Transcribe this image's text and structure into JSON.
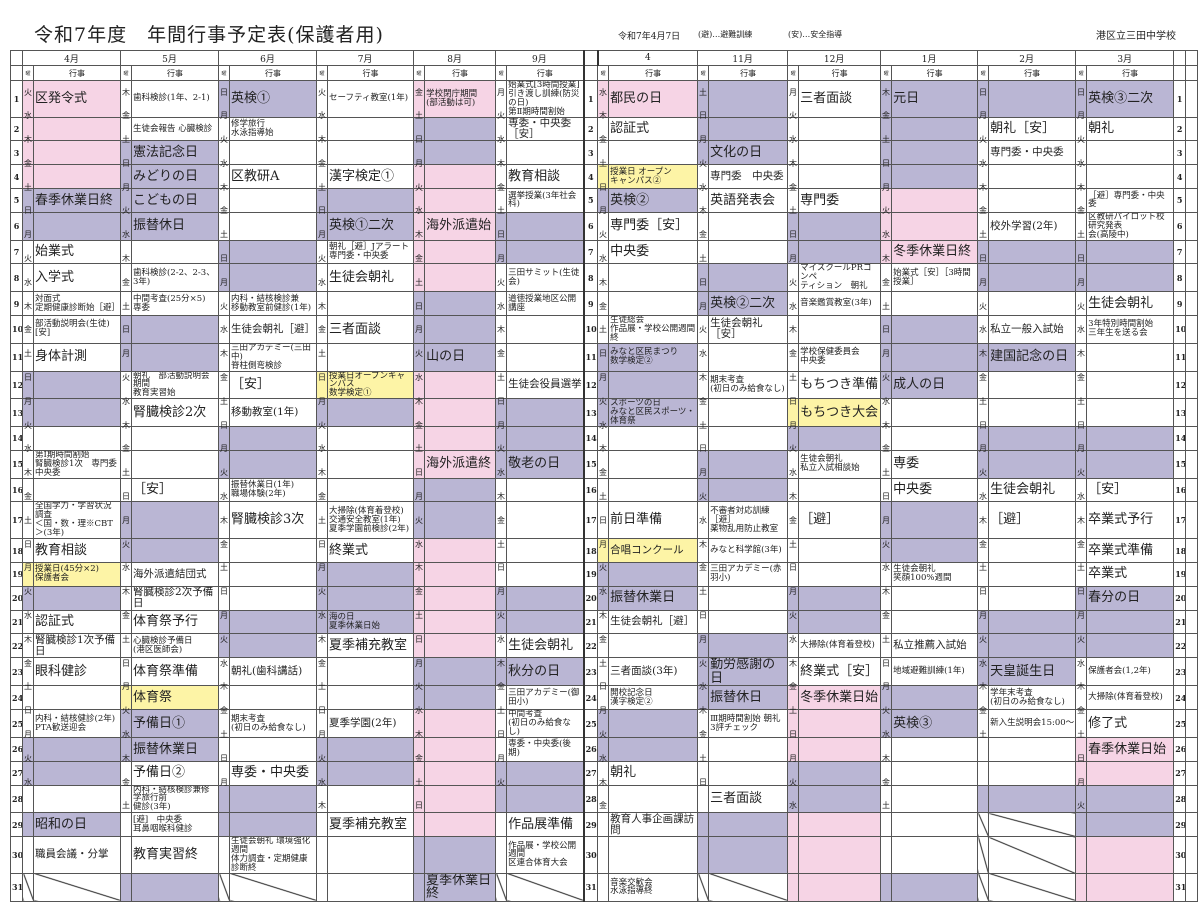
{
  "header": {
    "title": "令和7年度　年間行事予定表(保護者用)",
    "date": "令和7年4月7日",
    "legend_evac": "(避)…避難訓練",
    "legend_safety": "(安)…安全指導",
    "school": "港区立三田中学校",
    "wd_label": "曜",
    "event_label": "行事"
  },
  "colors": {
    "holiday": "#bab6d4",
    "vacation": "#f6d4e5",
    "special_school_day": "#fdf4a6"
  },
  "bg_legend": {
    ".": "normal",
    "w": "holiday",
    "p": "vacation",
    "y": "special_school_day",
    "x": "no-day"
  },
  "months": [
    {
      "name": "4月",
      "wd": "火水木金土日月火水木金土日月火水木金土日月火水木金土日月火水",
      "bg": "ppppww.....ww.....yw.....ww.w.x",
      "events": {
        "1": "区発令式",
        "5": "春季休業日終",
        "7": "始業式",
        "8": "入学式",
        "9": "対面式\n定期健康診断始［避］",
        "10": "部活動説明会(生徒)\n[安]",
        "11": "身体計測",
        "15": "第Ⅰ期時間割始\n腎臓検診1次　専門委中央委",
        "17": "全国学力・学習状況調査\n＜国・数・理※CBT＞(3年)",
        "18": "教育相談",
        "19": "授業日(45分×2)\n保護者会",
        "21": "認証式",
        "22": "腎臓検診1次予備日",
        "23": "眼科健診",
        "25": "内科・結核健診(2年)\nPTA歓送迎会",
        "29": "昭和の日",
        "30": "職員会議・分掌"
      }
    },
    {
      "name": "5月",
      "wd": "木金土日月火水木金土日月火水木金土日月火水木金土日月火水木金土",
      "bg": "..wwww...ww.....ww.....yww....w",
      "events": {
        "1": "歯科検診(1年、2-1)",
        "2": "生徒会報告 心臓検診",
        "3": "憲法記念日",
        "4": "みどりの日",
        "5": "こどもの日",
        "6": "振替休日",
        "8": "歯科検診(2-2、2-3、3年)",
        "9": "中間考査(25分×5)\n専委",
        "12": "朝礼　部活動説明会期間\n教育実習始",
        "13": "腎臓検診2次",
        "16": "［安］",
        "19": "海外派遣結団式",
        "20": "腎臓検診2次予備日",
        "21": "体育祭予行",
        "22": "心臓検診予備日\n(港区医師会)",
        "23": "体育祭準備",
        "24": "体育祭",
        "25": "予備日①",
        "26": "振替休業日",
        "27": "予備日②",
        "28": "内科・結核検診兼修学旅行前\n健診(3年)",
        "29": "[避]　中央委\n耳鼻咽喉科健診",
        "30": "教育実習終"
      }
    },
    {
      "name": "6月",
      "wd": "日月火水木金土日月火水木金土日月火水木金土日月火水木金土日月",
      "bg": "w.....ww.....ww.....ww.....ww.x",
      "events": {
        "1": "英検①",
        "2": "修学旅行\n水泳指導始",
        "4": "区教研A",
        "9": "内科・結核検診兼\n移動教室前健診(1年)",
        "10": "生徒会朝礼［避］",
        "11": "三田アカデミー(三田中)\n脊柱側弯検診",
        "12": "［安］",
        "13": "移動教室(1年)",
        "16": "振替休業日(1年)\n職場体験(2年)",
        "17": "腎臓検診3次",
        "23": "朝礼(歯科講話)",
        "25": "期末考査\n(初日のみ給食なし)",
        "27": "専委・中央委",
        "30": "生徒会朝礼 環境強化週間\n体力調査・定期健康診断終"
      }
    },
    {
      "name": "7月",
      "wd": "火水木金土日月火水木金土日月火水木金土日月火水木金土日月火水木",
      "bg": "....ww.....yw.....www....ww....",
      "events": {
        "1": "セーフティ教室(1年)",
        "4": "漢字検定①",
        "6": "英検①二次",
        "7": "朝礼［避］Jアラート\n専門委・中央委",
        "8": "生徒会朝礼",
        "10": "三者面談",
        "12": "授業日オープンキャンパス\n数学検定①",
        "17": "大掃除(体育着登校)\n交通安全教室(1年)\n夏季学園前検診(2年)",
        "18": "終業式",
        "21": "海の日\n夏季休業日始",
        "22": "夏季補充教室",
        "25": "夏季学園(2年)",
        "29": "夏季補充教室"
      }
    },
    {
      "name": "8月",
      "wd": "金土日月火水木金土日月火水木金土日月火水木金土日月火水木金土日",
      "bg": "pwwpppppwwwppppwwpppppwwpppppww",
      "events": {
        "1": "学校閉庁期間\n(部活動は可)",
        "6": "海外派遣始",
        "11": "山の日",
        "15": "海外派遣終",
        "31": "夏季休業日終"
      }
    },
    {
      "name": "9月",
      "wd": "月火水木金土日月火水木金土日月火水木金土日月火水木金土日月火",
      "bg": ".....ww.....www....ww.w...ww..x",
      "events": {
        "1": "始業式[3時間授業]\n引き渡し訓練(防災の日)\n第Ⅱ期時間割始",
        "2": "専委・中央委［安］",
        "4": "教育相談",
        "5": "選挙授業(3年社会科)",
        "8": "三田サミット(生徒会)",
        "9": "道徳授業地区公開講座",
        "12": "生徒会役員選挙",
        "15": "敬老の日",
        "22": "生徒会朝礼",
        "23": "秋分の日",
        "24": "三田アカデミー(御田小)",
        "25": "中間考査\n(初日のみ給食なし)",
        "26": "専委・中央委(後期)",
        "29": "作品展準備",
        "30": "作品展・学校公開週間\n区連合体育大会"
      }
    },
    {
      "name": "4",
      "wd": "水木金土日月火水木金土日月火水木金土日月火水木金土日月火水木金",
      "bg": "p..yw.....www....yww....ww.....",
      "events": {
        "1": "都民の日",
        "2": "認証式",
        "4": "授業日 オープン\nキャンパス②",
        "5": "英検②",
        "6": "専門委［安］",
        "7": "中央委",
        "10": "生徒総会\n作品展・学校公開週間終",
        "11": "みなと区民まつり\n数学検定②",
        "13": "スポーツの日\nみなと区民スポーツ・体育祭",
        "17": "前日準備",
        "18": "合唱コンクール",
        "20": "振替休業日",
        "21": "生徒会朝礼［避］",
        "23": "三者面談(3年)",
        "24": "開校記念日\n漢字検定②",
        "27": "朝礼",
        "29": "教育人事企画課訪問",
        "31": "音楽交歓会\n水泳指導終"
      }
    },
    {
      "name": "11月",
      "wd": "土日月火水木金土日月火水木金土日月火水木金土日月火水木金土日",
      "bg": "www....ww.....ww.....www....wwx",
      "events": {
        "3": "文化の日",
        "4": "専門委　中央委",
        "5": "英語発表会",
        "9": "英検②二次",
        "10": "生徒会朝礼［安］",
        "12": "期末考査\n(初日のみ給食なし)",
        "17": "不審者対応訓練［避］\n薬物乱用防止教室",
        "18": "みなと科学館(3年)",
        "19": "三田アカデミー(赤羽小)",
        "23": "勤労感謝の日",
        "24": "振替休日",
        "25": "Ⅲ期時間割始 朝礼\n3評チェック",
        "28": "三者面談"
      }
    },
    {
      "name": "12月",
      "wd": "月火水木金土日月火水木金土日月火水木金土日月火水木金土日月火水",
      "bg": ".....ww.....yw.....ww..pppwwppp",
      "events": {
        "1": "三者面談",
        "5": "専門委",
        "8": "マイスクールPRコンペ\nティション　朝礼",
        "9": "音楽鑑賞教室(3年)",
        "11": "学校保健委員会\n中央委",
        "12": "もちつき準備",
        "13": "もちつき大会",
        "15": "生徒会朝礼\n私立入試相談始",
        "17": "［避］",
        "22": "大掃除(体育着登校)",
        "23": "終業式［安］",
        "24": "冬季休業日始"
      }
    },
    {
      "name": "1月",
      "wd": "木金土日月火水木金土日月火水木金土日月火水木金土日月火水木金土",
      "bg": "wwwwppp..www....ww.....ww.....w",
      "events": {
        "1": "元日",
        "7": "冬季休業日終",
        "8": "始業式［安］［3時間授業］",
        "12": "成人の日",
        "15": "専委",
        "16": "中央委",
        "19": "生徒会朝礼\n笑顔100%週間",
        "22": "私立推薦入試始",
        "23": "地域避難訓練(1年)",
        "25": "英検③"
      }
    },
    {
      "name": "2月",
      "wd": "日月火水木金土日月火水木金土日月火水木金土日月火水木金土",
      "bg": "w.....ww..w..ww.....www....wxxx",
      "events": {
        "2": "朝礼［安］",
        "3": "専門委・中央委",
        "6": "校外学習(2年)",
        "10": "私立一般入試始",
        "11": "建国記念の日",
        "16": "生徒会朝礼",
        "17": "［避］",
        "23": "天皇誕生日",
        "24": "学年末考査\n(初日のみ給食なし)",
        "25": "新入生説明会15:00～"
      }
    },
    {
      "name": "3月",
      "wd": "日月火水木金土日月火水木金土日月火水木金土日月火水木金土日月火",
      "bg": "w.....ww.....ww....www...ppwwpp",
      "events": {
        "1": "英検③二次",
        "2": "朝礼",
        "5": "［避］専門委・中央委",
        "6": "区教研パイロット校研究発表\n会(高陵中)",
        "9": "生徒会朝礼",
        "10": "3年特別時間割始\n三年生を送る会",
        "16": "［安］",
        "17": "卒業式予行",
        "18": "卒業式準備",
        "19": "卒業式",
        "20": "春分の日",
        "23": "保護者会(1,2年)",
        "24": "大掃除(体育着登校)",
        "25": "修了式",
        "26": "春季休業日始"
      }
    }
  ]
}
